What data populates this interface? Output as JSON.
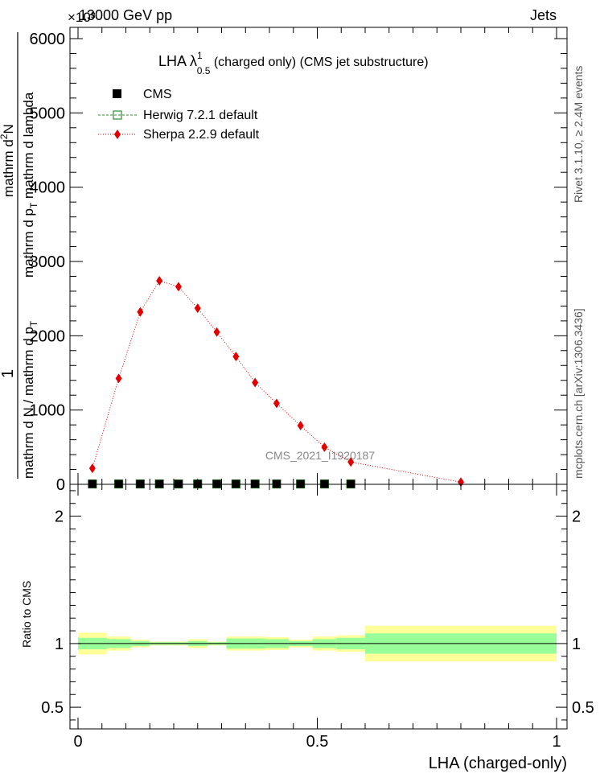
{
  "header": {
    "energy_label": "13000 GeV pp",
    "process_label": "Jets",
    "exponent_label": "×10³"
  },
  "side_labels": {
    "rivet": "Rivet 3.1.10, ≥ 2.4M events",
    "mcplots": "mcplots.cern.ch [arXiv:1306.3436]"
  },
  "chart_data": [
    {
      "type": "scatter",
      "title": "LHA λ¹₀.₅ (charged only) (CMS jet substructure)",
      "title_main": "LHA λ",
      "title_sup": "1",
      "title_sub": "0.5",
      "title_rest": " (charged only) (CMS jet substructure)",
      "ylabel_numerator": "1",
      "ylabel_line1": "mathrm d N / mathrm d p",
      "ylabel_line1_sub": "T",
      "ylabel_line2": "mathrm d",
      "ylabel_line2_sup": "2",
      "ylabel_line2_rest": "N",
      "ylabel_line3": "mathrm d p",
      "ylabel_line3_sub": "T",
      "ylabel_line3_rest": " mathrm d lambda",
      "watermark": "CMS_2021_I1920187",
      "xlim": [
        0,
        1
      ],
      "ylim": [
        0,
        6000
      ],
      "yticks": [
        0,
        1000,
        2000,
        3000,
        4000,
        5000,
        6000
      ],
      "ytick_labels": [
        "0",
        "1000",
        "2000",
        "3000",
        "4000",
        "5000",
        "6000"
      ],
      "legend_position": "top-left",
      "series": [
        {
          "name": "CMS",
          "color": "#000000",
          "marker": "square",
          "x": [
            0.03,
            0.085,
            0.13,
            0.17,
            0.21,
            0.25,
            0.29,
            0.33,
            0.37,
            0.415,
            0.465,
            0.515,
            0.57
          ],
          "y": [
            5,
            5,
            5,
            5,
            5,
            5,
            5,
            5,
            5,
            5,
            5,
            5,
            5
          ]
        },
        {
          "name": "Herwig 7.2.1 default",
          "color": "#2e8b2e",
          "marker": "open-square",
          "x": [
            0.03,
            0.085,
            0.13,
            0.17,
            0.21,
            0.25,
            0.29,
            0.33,
            0.37,
            0.415,
            0.465,
            0.515,
            0.57
          ],
          "y": [
            5,
            5,
            5,
            5,
            5,
            5,
            5,
            5,
            5,
            5,
            5,
            5,
            5
          ]
        },
        {
          "name": "Sherpa 2.2.9 default",
          "color": "#e00000",
          "marker": "diamond",
          "x": [
            0.03,
            0.085,
            0.13,
            0.17,
            0.21,
            0.25,
            0.29,
            0.33,
            0.37,
            0.415,
            0.465,
            0.515,
            0.57,
            0.8
          ],
          "y": [
            215,
            1425,
            2320,
            2740,
            2660,
            2370,
            2050,
            1720,
            1370,
            1090,
            790,
            500,
            300,
            30
          ]
        }
      ]
    },
    {
      "type": "area",
      "ylabel": "Ratio to CMS",
      "xlabel": "LHA (charged-only)",
      "xlim": [
        0,
        1
      ],
      "ylim": [
        0.33,
        2.25
      ],
      "xticks": [
        0,
        0.5,
        1
      ],
      "xtick_labels": [
        "0",
        "0.5",
        "1"
      ],
      "yticks": [
        0.5,
        1,
        2
      ],
      "ytick_labels": [
        "0.5",
        "1",
        "2"
      ],
      "inner_band_color": "#99ff99",
      "outer_band_color": "#ffff99",
      "bins": [
        {
          "lo": 0.0,
          "hi": 0.06,
          "inner": [
            0.955,
            1.045
          ],
          "outer": [
            0.915,
            1.085
          ]
        },
        {
          "lo": 0.06,
          "hi": 0.11,
          "inner": [
            0.965,
            1.035
          ],
          "outer": [
            0.945,
            1.055
          ]
        },
        {
          "lo": 0.11,
          "hi": 0.15,
          "inner": [
            0.98,
            1.02
          ],
          "outer": [
            0.97,
            1.03
          ]
        },
        {
          "lo": 0.15,
          "hi": 0.19,
          "inner": [
            0.99,
            1.01
          ],
          "outer": [
            0.985,
            1.015
          ]
        },
        {
          "lo": 0.19,
          "hi": 0.23,
          "inner": [
            0.99,
            1.01
          ],
          "outer": [
            0.985,
            1.015
          ]
        },
        {
          "lo": 0.23,
          "hi": 0.27,
          "inner": [
            0.98,
            1.02
          ],
          "outer": [
            0.965,
            1.035
          ]
        },
        {
          "lo": 0.27,
          "hi": 0.31,
          "inner": [
            0.99,
            1.01
          ],
          "outer": [
            0.985,
            1.015
          ]
        },
        {
          "lo": 0.31,
          "hi": 0.35,
          "inner": [
            0.96,
            1.04
          ],
          "outer": [
            0.945,
            1.055
          ]
        },
        {
          "lo": 0.35,
          "hi": 0.39,
          "inner": [
            0.96,
            1.04
          ],
          "outer": [
            0.945,
            1.055
          ]
        },
        {
          "lo": 0.39,
          "hi": 0.44,
          "inner": [
            0.965,
            1.035
          ],
          "outer": [
            0.95,
            1.05
          ]
        },
        {
          "lo": 0.44,
          "hi": 0.49,
          "inner": [
            0.98,
            1.02
          ],
          "outer": [
            0.97,
            1.03
          ]
        },
        {
          "lo": 0.49,
          "hi": 0.54,
          "inner": [
            0.965,
            1.035
          ],
          "outer": [
            0.945,
            1.055
          ]
        },
        {
          "lo": 0.54,
          "hi": 0.6,
          "inner": [
            0.955,
            1.045
          ],
          "outer": [
            0.935,
            1.065
          ]
        },
        {
          "lo": 0.6,
          "hi": 1.0,
          "inner": [
            0.92,
            1.08
          ],
          "outer": [
            0.86,
            1.14
          ]
        }
      ]
    }
  ]
}
